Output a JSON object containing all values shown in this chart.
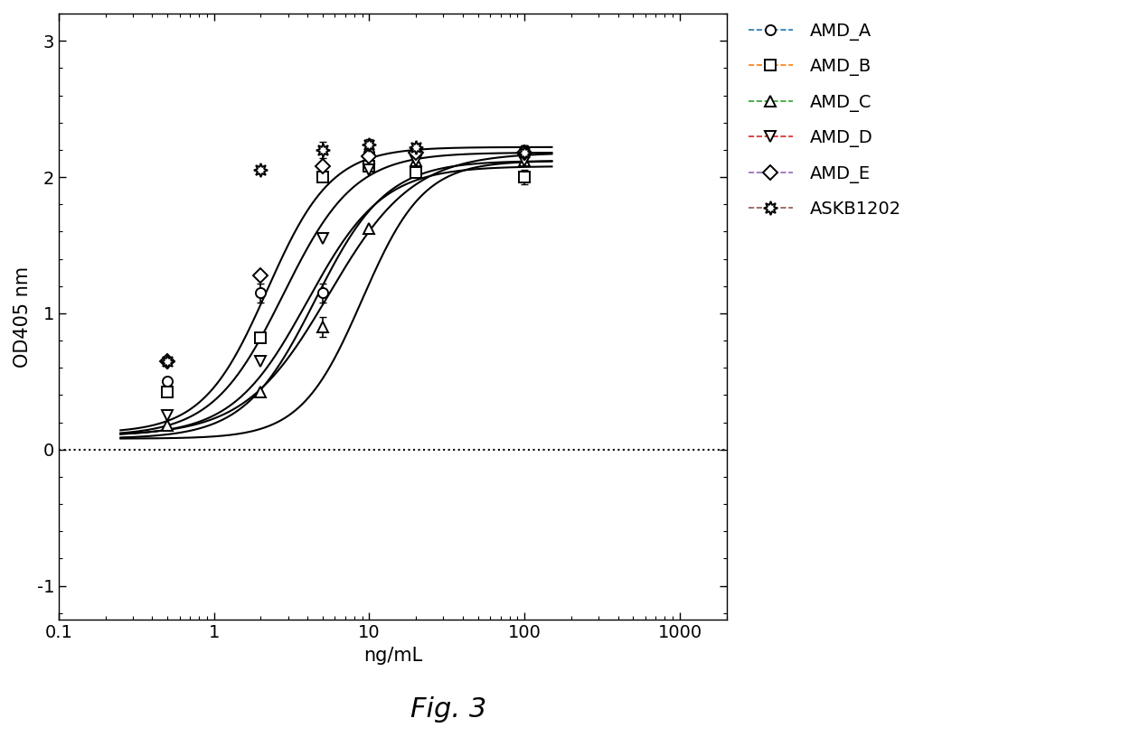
{
  "title": "Fig. 3",
  "xlabel": "ng/mL",
  "ylabel": "OD405 nm",
  "xlim": [
    0.22,
    2000
  ],
  "ylim": [
    -1.25,
    3.2
  ],
  "yticks": [
    -1,
    0,
    1,
    2,
    3
  ],
  "background_color": "#ffffff",
  "series": [
    {
      "label": "AMD_A",
      "marker": "o",
      "ec50": 5.5,
      "bottom": 0.1,
      "top": 2.18,
      "hillslope": 1.6,
      "x_data": [
        0.5,
        2.0,
        5.0,
        10.0,
        20.0,
        100.0
      ],
      "y_data": [
        0.5,
        1.15,
        1.15,
        2.18,
        2.18,
        2.18
      ],
      "y_err": [
        0.0,
        0.07,
        0.07,
        0.0,
        0.0,
        0.05
      ]
    },
    {
      "label": "AMD_B",
      "marker": "s",
      "ec50": 4.0,
      "bottom": 0.1,
      "top": 2.08,
      "hillslope": 1.8,
      "x_data": [
        0.5,
        2.0,
        5.0,
        10.0,
        20.0,
        100.0
      ],
      "y_data": [
        0.42,
        0.82,
        2.0,
        2.08,
        2.03,
        2.0
      ],
      "y_err": [
        0.0,
        0.0,
        0.03,
        0.0,
        0.0,
        0.05
      ]
    },
    {
      "label": "AMD_C",
      "marker": "^",
      "ec50": 9.0,
      "bottom": 0.08,
      "top": 2.12,
      "hillslope": 2.2,
      "x_data": [
        0.5,
        2.0,
        5.0,
        10.0,
        20.0,
        100.0
      ],
      "y_data": [
        0.18,
        0.42,
        0.9,
        1.62,
        2.12,
        2.12
      ],
      "y_err": [
        0.0,
        0.0,
        0.07,
        0.0,
        0.0,
        0.0
      ]
    },
    {
      "label": "AMD_D",
      "marker": "v",
      "ec50": 4.5,
      "bottom": 0.08,
      "top": 2.12,
      "hillslope": 1.9,
      "x_data": [
        0.5,
        2.0,
        5.0,
        10.0,
        20.0,
        100.0
      ],
      "y_data": [
        0.25,
        0.65,
        1.55,
        2.05,
        2.12,
        2.12
      ],
      "y_err": [
        0.0,
        0.0,
        0.0,
        0.0,
        0.0,
        0.0
      ]
    },
    {
      "label": "AMD_E",
      "marker": "D",
      "ec50": 2.8,
      "bottom": 0.1,
      "top": 2.18,
      "hillslope": 1.9,
      "x_data": [
        0.5,
        2.0,
        5.0,
        10.0,
        20.0,
        100.0
      ],
      "y_data": [
        0.65,
        1.28,
        2.08,
        2.15,
        2.18,
        2.18
      ],
      "y_err": [
        0.0,
        0.0,
        0.0,
        0.0,
        0.0,
        0.05
      ]
    },
    {
      "label": "ASKB1202",
      "marker": "star8",
      "ec50": 2.2,
      "bottom": 0.12,
      "top": 2.22,
      "hillslope": 2.1,
      "x_data": [
        0.5,
        2.0,
        5.0,
        10.0,
        20.0,
        100.0
      ],
      "y_data": [
        0.65,
        2.05,
        2.2,
        2.24,
        2.22,
        2.18
      ],
      "y_err": [
        0.0,
        0.0,
        0.06,
        0.04,
        0.0,
        0.05
      ]
    }
  ]
}
